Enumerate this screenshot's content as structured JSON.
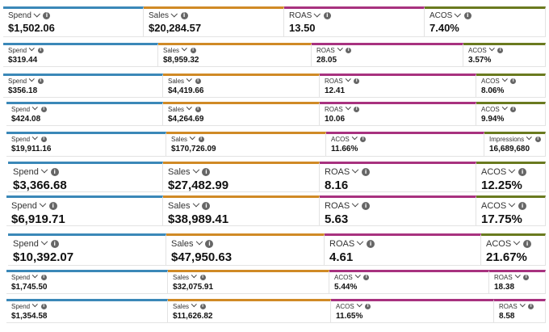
{
  "colors": {
    "spend": "#3b88b8",
    "sales": "#d08a26",
    "roas_acos": "#a8327f",
    "last": "#6a7a1f"
  },
  "icons": {
    "dropdown": "chevron-down-icon",
    "info": "info-icon"
  },
  "info_glyph": "i",
  "rows": [
    {
      "tiles": [
        {
          "label": "Spend",
          "value": "$1,502.06"
        },
        {
          "label": "Sales",
          "value": "$20,284.57"
        },
        {
          "label": "ROAS",
          "value": "13.50"
        },
        {
          "label": "ACOS",
          "value": "7.40%"
        }
      ]
    },
    {
      "tiles": [
        {
          "label": "Spend",
          "value": "$319.44"
        },
        {
          "label": "Sales",
          "value": "$8,959.32"
        },
        {
          "label": "ROAS",
          "value": "28.05"
        },
        {
          "label": "ACOS",
          "value": "3.57%"
        }
      ]
    },
    {
      "tiles": [
        {
          "label": "Spend",
          "value": "$356.18"
        },
        {
          "label": "Sales",
          "value": "$4,419.66"
        },
        {
          "label": "ROAS",
          "value": "12.41"
        },
        {
          "label": "ACOS",
          "value": "8.06%"
        }
      ]
    },
    {
      "tiles": [
        {
          "label": "Spend",
          "value": "$424.08"
        },
        {
          "label": "Sales",
          "value": "$4,264.69"
        },
        {
          "label": "ROAS",
          "value": "10.06"
        },
        {
          "label": "ACOS",
          "value": "9.94%"
        }
      ]
    },
    {
      "tiles": [
        {
          "label": "Spend",
          "value": "$19,911.16"
        },
        {
          "label": "Sales",
          "value": "$170,726.09"
        },
        {
          "label": "ACOS",
          "value": "11.66%"
        },
        {
          "label": "Impressions",
          "value": "16,689,680"
        }
      ]
    },
    {
      "tiles": [
        {
          "label": "Spend",
          "value": "$3,366.68"
        },
        {
          "label": "Sales",
          "value": "$27,482.99"
        },
        {
          "label": "ROAS",
          "value": "8.16"
        },
        {
          "label": "ACOS",
          "value": "12.25%"
        }
      ]
    },
    {
      "tiles": [
        {
          "label": "Spend",
          "value": "$6,919.71"
        },
        {
          "label": "Sales",
          "value": "$38,989.41"
        },
        {
          "label": "ROAS",
          "value": "5.63"
        },
        {
          "label": "ACOS",
          "value": "17.75%"
        }
      ]
    },
    {
      "tiles": [
        {
          "label": "Spend",
          "value": "$10,392.07"
        },
        {
          "label": "Sales",
          "value": "$47,950.63"
        },
        {
          "label": "ROAS",
          "value": "4.61"
        },
        {
          "label": "ACOS",
          "value": "21.67%"
        }
      ]
    },
    {
      "tiles": [
        {
          "label": "Spend",
          "value": "$1,745.50"
        },
        {
          "label": "Sales",
          "value": "$32,075.91"
        },
        {
          "label": "ACOS",
          "value": "5.44%"
        },
        {
          "label": "ROAS",
          "value": "18.38"
        }
      ]
    },
    {
      "tiles": [
        {
          "label": "Spend",
          "value": "$1,354.58"
        },
        {
          "label": "Sales",
          "value": "$11,626.82"
        },
        {
          "label": "ACOS",
          "value": "11.65%"
        },
        {
          "label": "ROAS",
          "value": "8.58"
        }
      ]
    }
  ]
}
